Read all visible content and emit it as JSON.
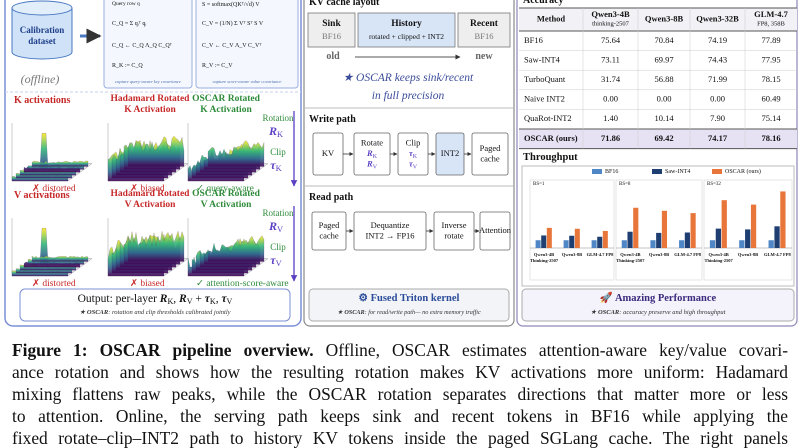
{
  "left": {
    "dataset": [
      "Calibration",
      "dataset"
    ],
    "offline": "(offline)",
    "query_box": {
      "title": "Query row q",
      "f1": "C_Q = Σ qᵢᵀ qᵢ",
      "f2": "C_Q ← C_Q Λ_Q C_Qᵀ",
      "f3": "R_K := C_Q",
      "note": "capture query-aware key covariance"
    },
    "value_box": {
      "f0": "S = softmax(QKᵀ/√d) V",
      "f1": "C_V = (1/N) Σ Vᵀ Sᵀ S V",
      "f2": "C_V ← C_V Λ_V C_Vᵀ",
      "f3": "R_V := C_V",
      "note": "capture score-aware value covariance"
    },
    "k_row": {
      "raw": "K activations",
      "hadamard": [
        "Hadamard Rotated",
        "K Activation"
      ],
      "oscar": [
        "OSCAR Rotated",
        "K Activation"
      ],
      "verdicts": [
        "✗ distorted",
        "✗ biased",
        "✓ query-aware"
      ],
      "rotation": "Rotation",
      "rot_sym": {
        "sym": "R",
        "sub": "K"
      },
      "clip": "Clip",
      "clip_sym": {
        "sym": "τ",
        "sub": "K"
      }
    },
    "v_row": {
      "raw": "V activations",
      "hadamard": [
        "Hadamard Rotated",
        "V Activation"
      ],
      "oscar": [
        "OSCAR Rotated",
        "V Activation"
      ],
      "verdicts": [
        "✗ distorted",
        "✗ biased",
        "✓ attention-score-aware"
      ],
      "rotation": "Rotation",
      "rot_sym": {
        "sym": "R",
        "sub": "V"
      },
      "clip": "Clip",
      "clip_sym": {
        "sym": "τ",
        "sub": "V"
      }
    },
    "output": {
      "line": [
        "Output: per-layer ",
        {
          "sym": "R",
          "sub": "K"
        },
        ", ",
        {
          "sym": "R",
          "sub": "V"
        },
        " + ",
        {
          "sym": "τ",
          "sub": "K"
        },
        ", ",
        {
          "sym": "τ",
          "sub": "V"
        }
      ],
      "note": [
        "★ ",
        "OSCAR",
        ": rotation and clip thresholds calibrated jointly"
      ]
    }
  },
  "middle": {
    "layout_title": "KV cache layout",
    "sink": {
      "label": "Sink",
      "prec": "BF16"
    },
    "history": {
      "label": "History",
      "prec": "rotated + clipped + INT2"
    },
    "recent": {
      "label": "Recent",
      "prec": "BF16"
    },
    "old": "old",
    "new": "new",
    "keeps": [
      "★ OSCAR keeps sink/recent",
      "in full precision"
    ],
    "write_title": "Write path",
    "write": [
      [
        "KV"
      ],
      [
        "Rotate",
        {
          "sym": "R",
          "sub": "K"
        },
        {
          "sym": "R",
          "sub": "V"
        }
      ],
      [
        "Clip",
        {
          "sym": "τ",
          "sub": "K"
        },
        {
          "sym": "τ",
          "sub": "V"
        }
      ],
      [
        "INT2"
      ],
      [
        "Paged",
        "cache"
      ]
    ],
    "read_title": "Read path",
    "read": [
      [
        "Paged",
        "cache"
      ],
      [
        "Dequantize",
        "INT2 → FP16"
      ],
      [
        "Inverse",
        "rotate"
      ],
      [
        "Attention"
      ]
    ],
    "kernel": "⚙  Fused Triton kernel",
    "note": [
      "★ ",
      "OSCAR",
      ": for read/write path— no extra memory traffic"
    ]
  },
  "right": {
    "accuracy": {
      "title": "Accuracy",
      "headers": [
        [
          "Method"
        ],
        [
          "Qwen3-4B",
          "thinking-2507"
        ],
        [
          "Qwen3-8B"
        ],
        [
          "Qwen3-32B"
        ],
        [
          "GLM-4.7",
          "FP8, 358B"
        ]
      ],
      "rows": [
        [
          "BF16",
          "75.64",
          "70.84",
          "74.19",
          "77.89"
        ],
        [
          "Saw-INT4",
          "73.11",
          "69.97",
          "74.43",
          "77.95"
        ],
        [
          "TurboQuant",
          "31.74",
          "56.88",
          "71.99",
          "78.15"
        ],
        [
          "Naive INT2",
          "0.00",
          "0.00",
          "0.00",
          "60.49"
        ],
        [
          "QuaRot-INT2",
          "1.40",
          "10.14",
          "7.90",
          "75.14"
        ],
        [
          "OSCAR (ours)",
          "71.86",
          "69.42",
          "74.17",
          "78.16"
        ]
      ]
    },
    "throughput": {
      "title": "Throughput",
      "chart": {
        "type": "bar",
        "ylim": [
          0,
          8
        ],
        "series": [
          {
            "name": "BF16",
            "color": "#4f86c6"
          },
          {
            "name": "Saw-INT4",
            "color": "#1f3f73"
          },
          {
            "name": "OSCAR (ours)",
            "color": "#e8763a"
          }
        ],
        "groups": [
          {
            "name": "BS=1",
            "categories": [
              [
                "Qwen3-4B",
                "Thinking-2507"
              ],
              [
                "Qwen3-8B"
              ],
              [
                "GLM-4.7 FP8"
              ]
            ],
            "values": [
              [
                1.0,
                1.62,
                2.6
              ],
              [
                1.0,
                1.58,
                2.48
              ],
              [
                1.0,
                1.45,
                2.2
              ]
            ]
          },
          {
            "name": "BS=8",
            "categories": [
              [
                "Qwen3-4B",
                "Thinking-2507"
              ],
              [
                "Qwen3-8B"
              ],
              [
                "GLM-4.7 FP8"
              ]
            ],
            "values": [
              [
                1.0,
                2.1,
                5.19
              ],
              [
                1.0,
                1.95,
                4.8
              ],
              [
                1.0,
                2.0,
                4.5
              ]
            ]
          },
          {
            "name": "BS=32",
            "categories": [
              [
                "Qwen3-4B",
                "Thinking-2507"
              ],
              [
                "Qwen3-8B"
              ],
              [
                "GLM-4.7 FP8"
              ]
            ],
            "values": [
              [
                1.0,
                2.5,
                6.17
              ],
              [
                1.0,
                2.4,
                5.6
              ],
              [
                1.0,
                2.8,
                7.3
              ]
            ]
          }
        ]
      }
    },
    "performance": "🚀  Amazing Performance",
    "note": [
      "★ ",
      "OSCAR",
      ": accuracy preserve and high throughput"
    ]
  },
  "caption": {
    "first": {
      "label": "Figure 1: ",
      "title": "OSCAR pipeline overview.",
      "text": " Offline, OSCAR estimates attention-aware key/value covari-"
    },
    "lines": [
      "ance rotation and shows how the resulting rotation makes KV activations more uniform: Hadamard",
      "mixing flattens raw peaks, while the OSCAR rotation separates directions that matter more or less",
      "to attention. Online, the serving path keeps sink and recent tokens in BF16 while applying the",
      "fixed rotate–clip–INT2 path to history KV tokens inside the paged SGLang cache. The right panels"
    ]
  }
}
